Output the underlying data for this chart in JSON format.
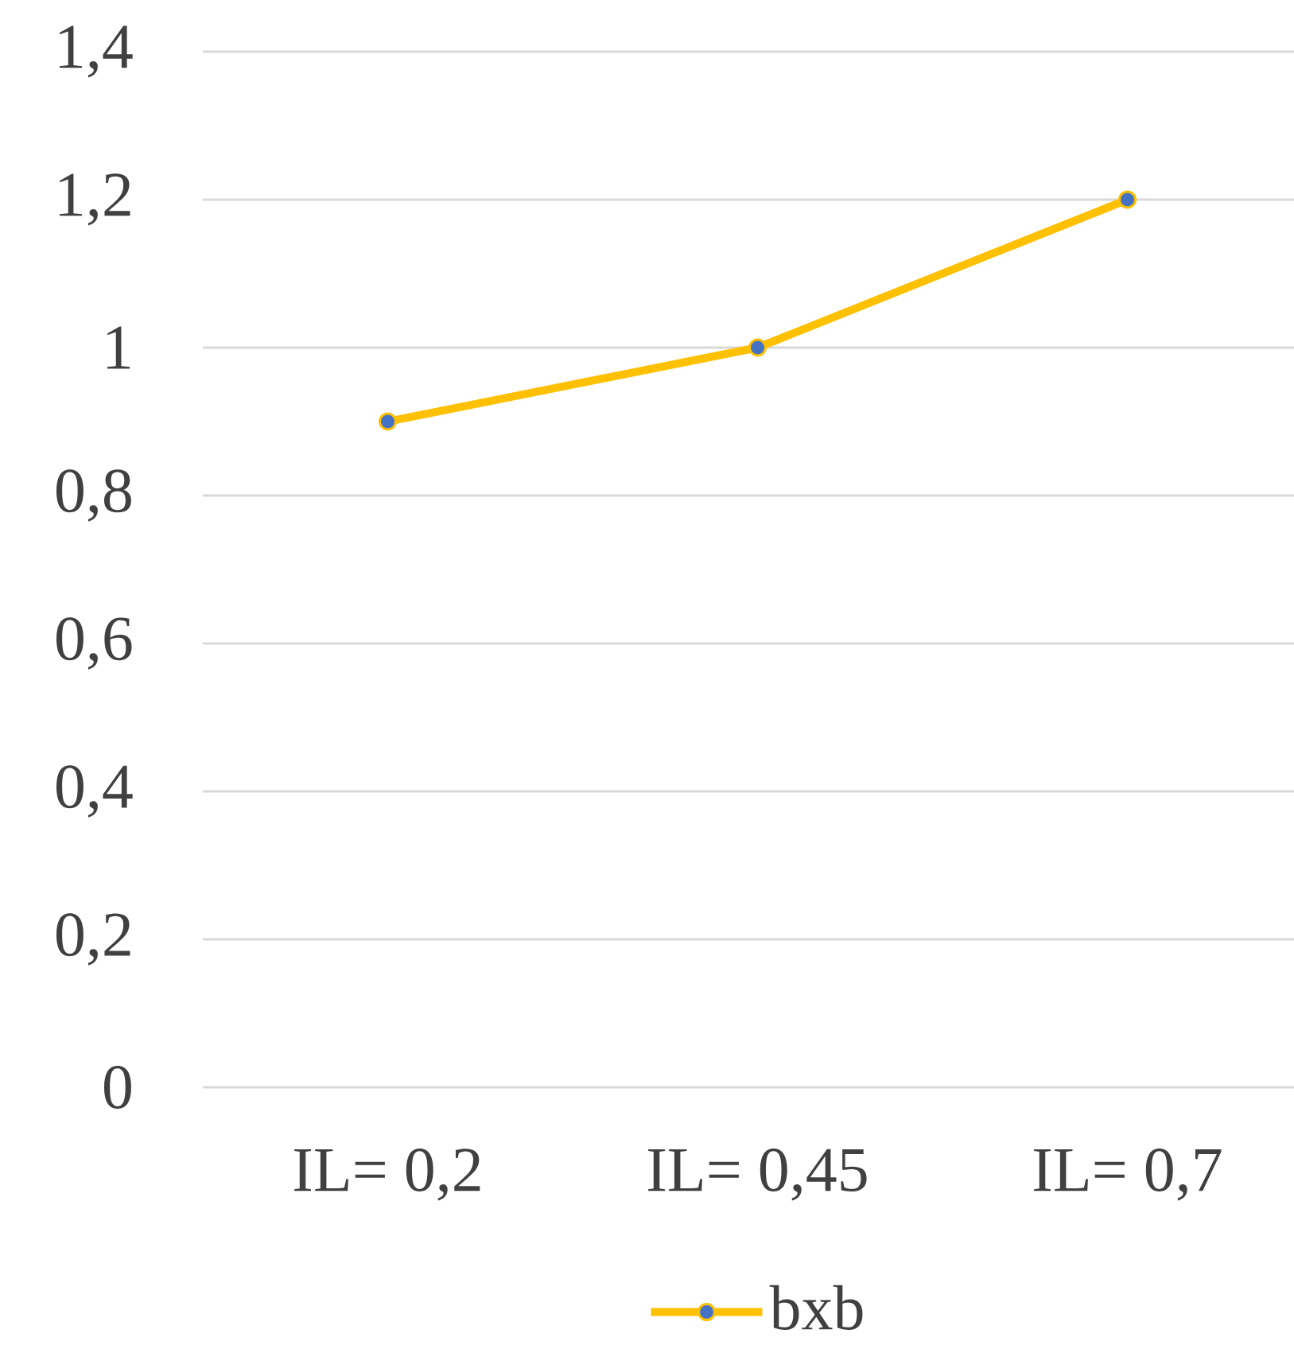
{
  "chart_data": {
    "type": "line",
    "categories": [
      "IL= 0,2",
      "IL= 0,45",
      "IL= 0,7"
    ],
    "series": [
      {
        "name": "bxb",
        "color": "#ffc000",
        "values": [
          0.9,
          1.0,
          1.2
        ]
      }
    ],
    "ylim": [
      0,
      1.4
    ],
    "yticks": [
      {
        "value": 0,
        "label": "0"
      },
      {
        "value": 0.2,
        "label": "0,2"
      },
      {
        "value": 0.4,
        "label": "0,4"
      },
      {
        "value": 0.6,
        "label": "0,6"
      },
      {
        "value": 0.8,
        "label": "0,8"
      },
      {
        "value": 1,
        "label": "1"
      },
      {
        "value": 1.2,
        "label": "1,2"
      },
      {
        "value": 1.4,
        "label": "1,4"
      }
    ],
    "grid": "y",
    "legend": "bottom",
    "marker": "circle",
    "line_style": "solid"
  }
}
